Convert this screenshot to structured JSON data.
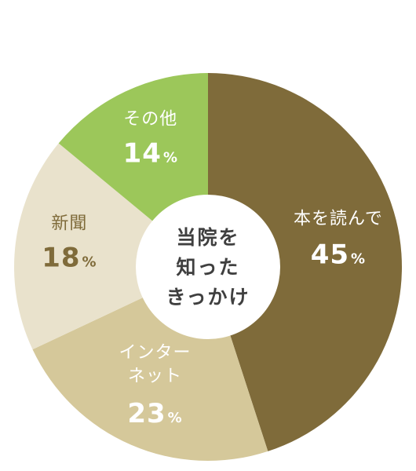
{
  "chart_data": {
    "type": "pie",
    "slices": [
      {
        "name": "本を読んで",
        "value": 45,
        "pct_text": "45",
        "color": "#7f6b3a",
        "label_color": "#ffffff"
      },
      {
        "name": "インターネット",
        "name_lines": [
          "インター",
          "ネット"
        ],
        "value": 23,
        "pct_text": "23",
        "color": "#d5c89a",
        "label_color": "#ffffff"
      },
      {
        "name": "新聞",
        "value": 18,
        "pct_text": "18",
        "color": "#e9e2cc",
        "label_color": "#7f6b3a"
      },
      {
        "name": "その他",
        "value": 14,
        "pct_text": "14",
        "color": "#9cc75a",
        "label_color": "#ffffff"
      }
    ],
    "percent_sign": "%",
    "center_label_lines": [
      "当院を",
      "知った",
      "きっかけ"
    ],
    "start": "12 o'clock",
    "direction": "clockwise"
  }
}
